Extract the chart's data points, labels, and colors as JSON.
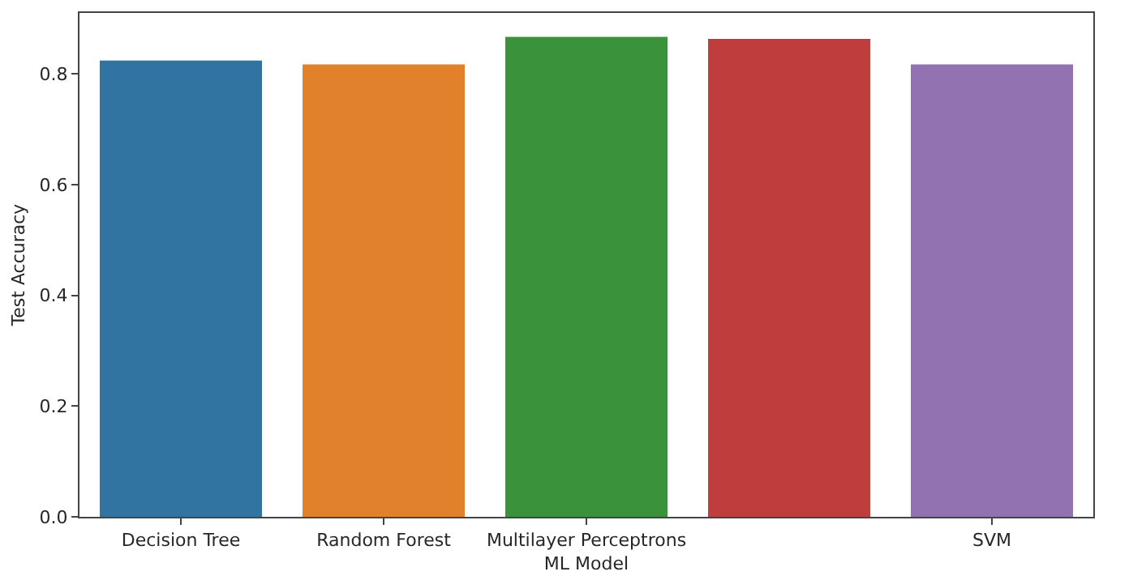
{
  "chart_data": {
    "type": "bar",
    "xlabel": "ML Model",
    "ylabel": "Test Accuracy",
    "categories": [
      "Decision Tree",
      "Random Forest",
      "Multilayer Perceptrons",
      null,
      "SVM"
    ],
    "values": [
      0.824,
      0.817,
      0.867,
      0.863,
      0.817
    ],
    "colors": [
      "#3274a1",
      "#e1812c",
      "#3a923a",
      "#c03d3e",
      "#9372b2"
    ],
    "ylim": [
      0,
      0.91
    ],
    "yticks": [
      {
        "value": 0,
        "label": "0.0"
      },
      {
        "value": 0.2,
        "label": "0.2"
      },
      {
        "value": 0.4,
        "label": "0.4"
      },
      {
        "value": 0.6,
        "label": "0.6"
      },
      {
        "value": 0.8,
        "label": "0.8"
      }
    ],
    "grid": false
  }
}
